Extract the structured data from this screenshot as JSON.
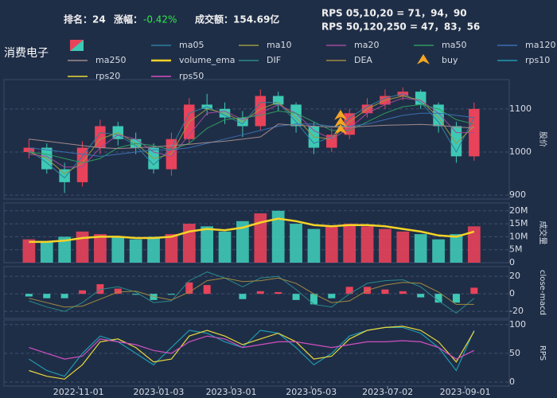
{
  "header": {
    "rank": "排名：24",
    "change_label": "涨幅：",
    "change": "-0.42%",
    "turnover": "成交额：154.69亿",
    "rps_short": "RPS 05,10,20 = 71，94，90",
    "rps_long": "RPS 50,120,250 = 47，83，56",
    "name": "消费电子"
  },
  "chart_data": [
    {
      "type": "candlestick",
      "ylabel": "股价",
      "up_color": "#e8435a",
      "down_color": "#3ec9b5",
      "grid": true,
      "xlim": [
        "2022-09-19",
        "2023-09-20"
      ],
      "ylim": [
        891,
        1168
      ],
      "yticks": [
        900,
        1000,
        1100
      ],
      "x": [
        "2022-09-23",
        "2022-10-07",
        "2022-10-21",
        "2022-11-04",
        "2022-11-18",
        "2022-12-02",
        "2022-12-16",
        "2022-12-30",
        "2023-01-13",
        "2023-01-27",
        "2023-02-10",
        "2023-02-24",
        "2023-03-10",
        "2023-03-24",
        "2023-04-07",
        "2023-04-21",
        "2023-05-05",
        "2023-05-19",
        "2023-06-02",
        "2023-06-16",
        "2023-06-30",
        "2023-07-14",
        "2023-07-28",
        "2023-08-11",
        "2023-08-25",
        "2023-09-08"
      ],
      "open": [
        1000,
        1010,
        960,
        930,
        1010,
        1060,
        1030,
        1010,
        960,
        1030,
        1110,
        1100,
        1080,
        1060,
        1130,
        1110,
        1060,
        1010,
        1040,
        1090,
        1110,
        1130,
        1140,
        1110,
        1060,
        990
      ],
      "high": [
        1030,
        1020,
        975,
        1025,
        1075,
        1070,
        1045,
        1020,
        1045,
        1125,
        1135,
        1115,
        1095,
        1145,
        1140,
        1115,
        1070,
        1055,
        1100,
        1125,
        1145,
        1150,
        1145,
        1115,
        1070,
        1115
      ],
      "low": [
        985,
        950,
        905,
        920,
        995,
        1015,
        995,
        950,
        945,
        1020,
        1085,
        1065,
        1035,
        1050,
        1095,
        1045,
        995,
        1000,
        1030,
        1080,
        1100,
        1120,
        1100,
        1045,
        975,
        980
      ],
      "close": [
        1010,
        960,
        930,
        1010,
        1060,
        1030,
        1010,
        960,
        1030,
        1110,
        1100,
        1080,
        1060,
        1130,
        1110,
        1060,
        1010,
        1040,
        1090,
        1110,
        1130,
        1140,
        1110,
        1060,
        990,
        1100
      ],
      "series": [
        {
          "name": "ma05",
          "color": "#2f7fa0",
          "values": [
            1005,
            975,
            940,
            990,
            1045,
            1040,
            1015,
            970,
            1010,
            1090,
            1105,
            1085,
            1065,
            1115,
            1115,
            1070,
            1020,
            1035,
            1080,
            1105,
            1125,
            1135,
            1115,
            1070,
            1000,
            1080
          ]
        },
        {
          "name": "ma10",
          "color": "#9a9a40",
          "values": [
            1000,
            985,
            950,
            975,
            1030,
            1045,
            1020,
            985,
            995,
            1070,
            1100,
            1090,
            1070,
            1100,
            1115,
            1080,
            1035,
            1030,
            1070,
            1100,
            1120,
            1130,
            1120,
            1080,
            1020,
            1060
          ]
        },
        {
          "name": "ma20",
          "color": "#a04a9a",
          "values": [
            995,
            990,
            965,
            965,
            1010,
            1040,
            1030,
            1000,
            990,
            1040,
            1090,
            1095,
            1075,
            1090,
            1110,
            1090,
            1050,
            1030,
            1055,
            1090,
            1110,
            1125,
            1120,
            1090,
            1045,
            1045
          ]
        },
        {
          "name": "ma50",
          "color": "#2e9a60",
          "values": [
            1000,
            995,
            985,
            975,
            985,
            1010,
            1020,
            1015,
            1005,
            1020,
            1055,
            1075,
            1080,
            1085,
            1095,
            1090,
            1070,
            1050,
            1050,
            1070,
            1090,
            1105,
            1110,
            1100,
            1075,
            1065
          ]
        },
        {
          "name": "ma120",
          "color": "#3a6fb0",
          "values": [
            1010,
            1005,
            1000,
            995,
            990,
            995,
            1000,
            1005,
            1005,
            1010,
            1020,
            1030,
            1040,
            1050,
            1060,
            1065,
            1065,
            1060,
            1060,
            1065,
            1075,
            1085,
            1090,
            1090,
            1085,
            1080
          ]
        },
        {
          "name": "ma250",
          "color": "#a08a8a",
          "values": [
            1030,
            1025,
            1020,
            1015,
            1010,
            1008,
            1010,
            1012,
            1015,
            1018,
            1022,
            1025,
            1030,
            1035,
            1065,
            1062,
            1060,
            1058,
            1058,
            1060,
            1062,
            1063,
            1064,
            1062,
            1058,
            1056
          ]
        }
      ],
      "buy": {
        "name": "buy",
        "color": "#f5a623",
        "x": [
          "2023-05-26"
        ],
        "values": [
          1050
        ]
      }
    },
    {
      "type": "bar",
      "ylabel": "成交量",
      "up_color": "#e8435a",
      "down_color": "#3ec9b5",
      "grid": true,
      "xlim": [
        "2022-09-19",
        "2023-09-20"
      ],
      "ylim": [
        0,
        23
      ],
      "yticks": [
        0,
        {
          "value": 5,
          "label": "5M"
        },
        {
          "value": 10,
          "label": "10M"
        },
        {
          "value": 15,
          "label": "15M"
        },
        {
          "value": 20,
          "label": "20M"
        }
      ],
      "x": [
        "2022-09-23",
        "2022-10-07",
        "2022-10-21",
        "2022-11-04",
        "2022-11-18",
        "2022-12-02",
        "2022-12-16",
        "2022-12-30",
        "2023-01-13",
        "2023-01-27",
        "2023-02-10",
        "2023-02-24",
        "2023-03-10",
        "2023-03-24",
        "2023-04-07",
        "2023-04-21",
        "2023-05-05",
        "2023-05-19",
        "2023-06-02",
        "2023-06-16",
        "2023-06-30",
        "2023-07-14",
        "2023-07-28",
        "2023-08-11",
        "2023-08-25",
        "2023-09-08"
      ],
      "values": [
        9,
        8,
        10,
        12,
        11,
        10,
        9,
        10,
        11,
        15,
        14,
        12,
        16,
        19,
        20,
        15,
        13,
        14,
        15,
        14,
        13,
        12,
        11,
        9,
        11,
        14
      ],
      "series": [
        {
          "name": "volume_ema",
          "color": "#f5d327",
          "values": [
            8,
            8,
            8.5,
            9.5,
            10,
            10,
            9.5,
            9.5,
            10,
            12,
            13,
            12.5,
            13.5,
            15.5,
            17,
            16,
            14.5,
            14,
            14.5,
            14.5,
            14,
            13,
            12,
            10.5,
            10,
            12
          ]
        }
      ]
    },
    {
      "type": "macd",
      "ylabel": "close-macd",
      "up_color": "#e8435a",
      "down_color": "#3ec9b5",
      "grid": true,
      "xlim": [
        "2022-09-19",
        "2023-09-20"
      ],
      "ylim": [
        -28,
        31
      ],
      "yticks": [
        -20,
        0,
        20
      ],
      "x": [
        "2022-09-23",
        "2022-10-07",
        "2022-10-21",
        "2022-11-04",
        "2022-11-18",
        "2022-12-02",
        "2022-12-16",
        "2022-12-30",
        "2023-01-13",
        "2023-01-27",
        "2023-02-10",
        "2023-02-24",
        "2023-03-10",
        "2023-03-24",
        "2023-04-07",
        "2023-04-21",
        "2023-05-05",
        "2023-05-19",
        "2023-06-02",
        "2023-06-16",
        "2023-06-30",
        "2023-07-14",
        "2023-07-28",
        "2023-08-11",
        "2023-08-25",
        "2023-09-08"
      ],
      "values": [
        -3,
        -5,
        -5,
        4,
        11,
        6,
        -1,
        -7,
        -1,
        13,
        10,
        0,
        -6,
        3,
        2,
        -7,
        -12,
        -5,
        8,
        8,
        5,
        3,
        -4,
        -10,
        -10,
        7
      ],
      "series": [
        {
          "name": "DIF",
          "color": "#2a8a8a",
          "values": [
            -8,
            -15,
            -20,
            -10,
            5,
            8,
            2,
            -10,
            -8,
            15,
            25,
            18,
            8,
            18,
            20,
            5,
            -12,
            -15,
            0,
            12,
            15,
            16,
            8,
            -8,
            -22,
            -5
          ]
        },
        {
          "name": "DEA",
          "color": "#a08a40",
          "values": [
            -5,
            -10,
            -15,
            -14,
            -6,
            2,
            3,
            -3,
            -7,
            2,
            15,
            18,
            14,
            15,
            18,
            12,
            0,
            -10,
            -8,
            4,
            10,
            13,
            12,
            2,
            -12,
            -12
          ]
        }
      ]
    },
    {
      "type": "line",
      "ylabel": "RPS",
      "grid": true,
      "xlim": [
        "2022-09-19",
        "2023-09-20"
      ],
      "ylim": [
        -7,
        108
      ],
      "yticks": [
        0,
        50,
        100
      ],
      "xticks": [
        "2022-11-01",
        "2023-01-03",
        "2023-03-01",
        "2023-05-03",
        "2023-07-02",
        "2023-09-01"
      ],
      "x": [
        "2022-09-23",
        "2022-10-07",
        "2022-10-21",
        "2022-11-04",
        "2022-11-18",
        "2022-12-02",
        "2022-12-16",
        "2022-12-30",
        "2023-01-13",
        "2023-01-27",
        "2023-02-10",
        "2023-02-24",
        "2023-03-10",
        "2023-03-24",
        "2023-04-07",
        "2023-04-21",
        "2023-05-05",
        "2023-05-19",
        "2023-06-02",
        "2023-06-16",
        "2023-06-30",
        "2023-07-14",
        "2023-07-28",
        "2023-08-11",
        "2023-08-25",
        "2023-09-08"
      ],
      "series": [
        {
          "name": "rps10",
          "color": "#1f9ab0",
          "values": [
            40,
            20,
            10,
            50,
            80,
            70,
            50,
            30,
            60,
            90,
            85,
            70,
            60,
            90,
            85,
            60,
            30,
            50,
            80,
            90,
            95,
            95,
            85,
            60,
            20,
            90
          ]
        },
        {
          "name": "rps20",
          "color": "#e8d83a",
          "values": [
            20,
            10,
            5,
            30,
            70,
            75,
            60,
            35,
            40,
            80,
            90,
            80,
            65,
            75,
            85,
            70,
            40,
            45,
            75,
            90,
            95,
            97,
            90,
            70,
            35,
            88
          ]
        },
        {
          "name": "rps50",
          "color": "#d050c0",
          "values": [
            60,
            50,
            40,
            45,
            75,
            70,
            65,
            55,
            50,
            70,
            80,
            75,
            60,
            65,
            70,
            70,
            65,
            60,
            65,
            70,
            70,
            72,
            70,
            60,
            40,
            55
          ]
        }
      ]
    }
  ]
}
